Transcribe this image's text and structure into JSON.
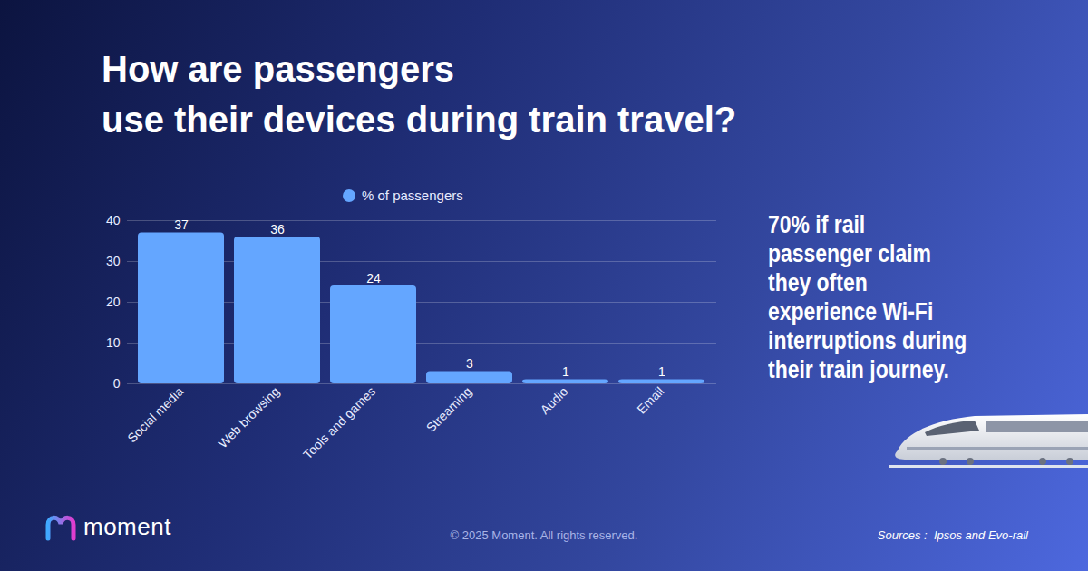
{
  "chart_data": {
    "type": "bar",
    "title": "How are passengers\nuse their devices during train travel?",
    "categories": [
      "Social media",
      "Web browsing",
      "Tools and games",
      "Streaming",
      "Audio",
      "Email"
    ],
    "series": [
      {
        "name": "% of passengers",
        "color": "#64a6ff",
        "values": [
          37,
          36,
          24,
          3,
          1,
          1
        ]
      }
    ],
    "ylim": [
      0,
      40
    ],
    "yticks": [
      0,
      10,
      20,
      30,
      40
    ],
    "grid": true,
    "legend": "top",
    "data_labels": true,
    "annotations": [
      "70% if rail\npassenger claim\nthey often\nexperience Wi-Fi\ninterruptions during\ntheir train journey."
    ],
    "logo": "moment",
    "copyright": "© 2025 Moment. All rights reserved.",
    "source": "Sources :  Ipsos and Evo-rail"
  }
}
